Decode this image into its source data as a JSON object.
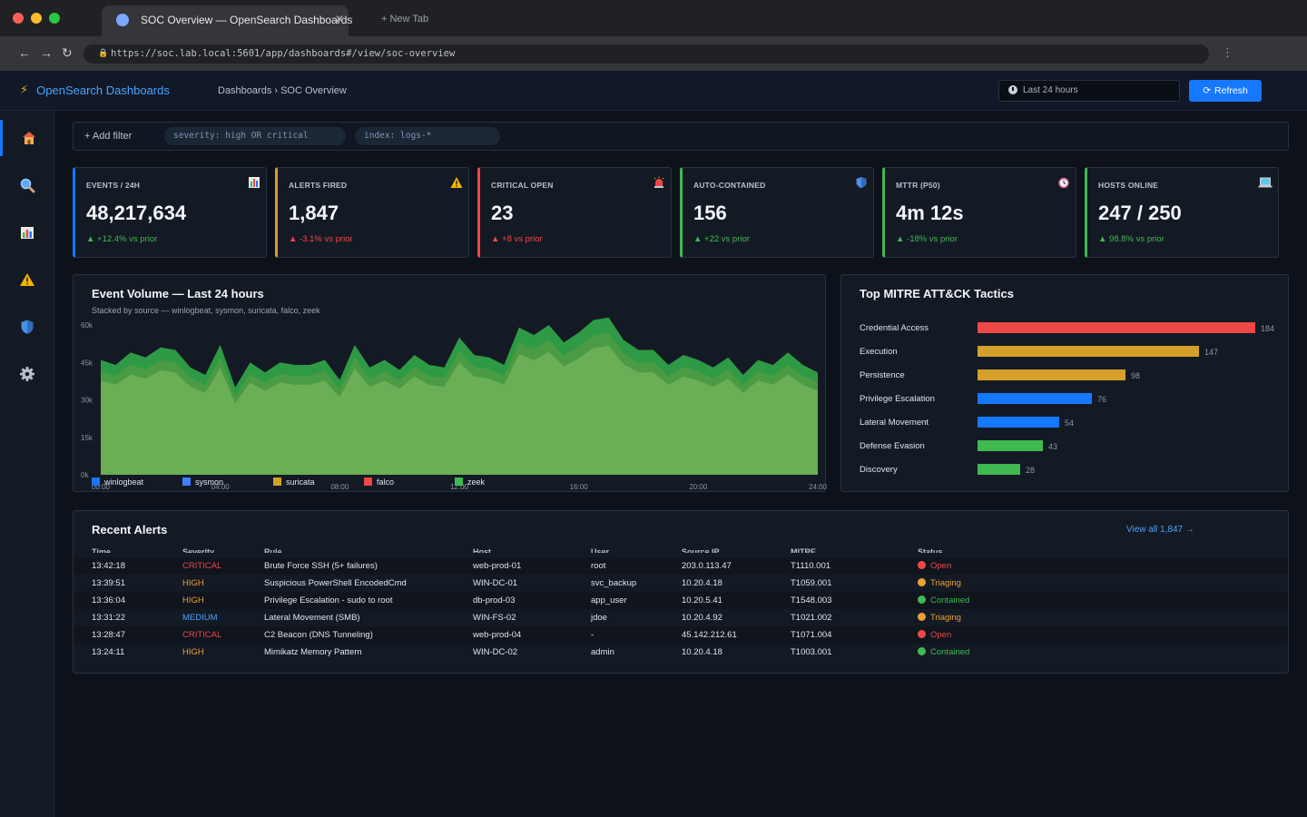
{
  "browser": {
    "tab_title": "SOC Overview — OpenSearch Dashboards",
    "new_tab_label": "+ New Tab",
    "url": "https://soc.lab.local:5601/app/dashboards#/view/soc-overview"
  },
  "header": {
    "brand": "OpenSearch Dashboards",
    "breadcrumb": "Dashboards › SOC Overview",
    "time_range": "Last 24 hours",
    "refresh_label": "Refresh"
  },
  "sidebar": {
    "items": [
      {
        "icon": "home-icon",
        "active": true
      },
      {
        "icon": "search-icon",
        "active": false
      },
      {
        "icon": "dashboard-icon",
        "active": false
      },
      {
        "icon": "alert-icon",
        "active": false
      },
      {
        "icon": "shield-icon",
        "active": false
      },
      {
        "icon": "gear-icon",
        "active": false
      }
    ]
  },
  "filters": {
    "add_label": "+ Add filter",
    "pills": [
      "severity: high OR critical",
      "index: logs-*"
    ]
  },
  "kpis": [
    {
      "label": "EVENTS / 24H",
      "value": "48,217,634",
      "delta": "▲ +12.4% vs prior",
      "color": "#1677ff",
      "delta_color": "#3fb950",
      "icon": "chart-icon"
    },
    {
      "label": "ALERTS FIRED",
      "value": "1,847",
      "delta": "▲ -3.1% vs prior",
      "color": "#d4a02a",
      "delta_color": "#f04747",
      "icon": "warning-icon"
    },
    {
      "label": "CRITICAL OPEN",
      "value": "23",
      "delta": "▲ +8 vs prior",
      "color": "#f04747",
      "delta_color": "#f04747",
      "icon": "siren-icon"
    },
    {
      "label": "AUTO-CONTAINED",
      "value": "156",
      "delta": "▲ +22 vs prior",
      "color": "#3fb950",
      "delta_color": "#3fb950",
      "icon": "shield-icon"
    },
    {
      "label": "MTTR (P50)",
      "value": "4m 12s",
      "delta": "▲ -18% vs prior",
      "color": "#3fb950",
      "delta_color": "#3fb950",
      "icon": "alarm-clock-icon"
    },
    {
      "label": "HOSTS ONLINE",
      "value": "247 / 250",
      "delta": "▲ 98.8% vs prior",
      "color": "#3fb950",
      "delta_color": "#3fb950",
      "icon": "laptop-icon"
    }
  ],
  "event_volume": {
    "title": "Event Volume — Last 24 hours",
    "subtitle": "Stacked by source — winlogbeat, sysmon, suricata, falco, zeek"
  },
  "chart_data": [
    {
      "type": "area",
      "title": "Event Volume — Last 24 hours",
      "subtitle": "Stacked by source — winlogbeat, sysmon, suricata, falco, zeek",
      "ylim": [
        0,
        60000
      ],
      "yticks": [
        "60k",
        "45k",
        "30k",
        "15k",
        "0k"
      ],
      "xticks": [
        "00:00",
        "04:00",
        "08:00",
        "12:00",
        "16:00",
        "20:00",
        "24:00"
      ],
      "grid": false,
      "legend_position": "bottom",
      "x": [
        "00:00",
        "00:30",
        "01:00",
        "01:30",
        "02:00",
        "02:30",
        "03:00",
        "03:30",
        "04:00",
        "04:30",
        "05:00",
        "05:30",
        "06:00",
        "06:30",
        "07:00",
        "07:30",
        "08:00",
        "08:30",
        "09:00",
        "09:30",
        "10:00",
        "10:30",
        "11:00",
        "11:30",
        "12:00",
        "12:30",
        "13:00",
        "13:30",
        "14:00",
        "14:30",
        "15:00",
        "15:30",
        "16:00",
        "16:30",
        "17:00",
        "17:30",
        "18:00",
        "18:30",
        "19:00",
        "19:30",
        "20:00",
        "20:30",
        "21:00",
        "21:30",
        "22:00",
        "22:30",
        "23:00",
        "23:30",
        "24:00"
      ],
      "series": [
        {
          "name": "winlogbeat",
          "color": "#1677ff",
          "values": [
            46000,
            44000,
            49000,
            47000,
            51000,
            50000,
            43000,
            40000,
            52000,
            35000,
            45000,
            41000,
            45000,
            44000,
            44000,
            46000,
            38000,
            52000,
            43000,
            46000,
            42000,
            48000,
            44000,
            43000,
            55000,
            48000,
            47000,
            44000,
            59000,
            56000,
            60000,
            53000,
            57000,
            62000,
            63000,
            54000,
            50000,
            50000,
            44000,
            48000,
            46000,
            43000,
            47000,
            40000,
            46000,
            44000,
            49000,
            44000,
            41000
          ]
        },
        {
          "name": "sysmon",
          "color": "#3d7eff",
          "values": [
            0,
            0,
            0,
            0,
            0,
            0,
            0,
            0,
            0,
            0,
            0,
            0,
            0,
            0,
            0,
            0,
            0,
            0,
            0,
            0,
            0,
            0,
            0,
            0,
            0,
            0,
            0,
            0,
            0,
            0,
            0,
            0,
            0,
            0,
            0,
            0,
            0,
            0,
            0,
            0,
            0,
            0,
            0,
            0,
            0,
            0,
            0,
            0,
            0
          ]
        },
        {
          "name": "suricata",
          "color": "#d4a02a",
          "values": [
            0,
            0,
            0,
            0,
            0,
            0,
            0,
            0,
            0,
            0,
            0,
            0,
            0,
            0,
            0,
            0,
            0,
            0,
            0,
            0,
            0,
            0,
            0,
            0,
            0,
            0,
            0,
            0,
            0,
            0,
            0,
            0,
            0,
            0,
            0,
            0,
            0,
            0,
            0,
            0,
            0,
            0,
            0,
            0,
            0,
            0,
            0,
            0,
            0
          ]
        },
        {
          "name": "falco",
          "color": "#f04747",
          "values": [
            0,
            0,
            0,
            0,
            0,
            0,
            0,
            0,
            0,
            0,
            0,
            0,
            0,
            0,
            0,
            0,
            0,
            0,
            0,
            0,
            0,
            0,
            0,
            0,
            0,
            0,
            0,
            0,
            0,
            0,
            0,
            0,
            0,
            0,
            0,
            0,
            0,
            0,
            0,
            0,
            0,
            0,
            0,
            0,
            0,
            0,
            0,
            0,
            0
          ]
        },
        {
          "name": "zeek",
          "color": "#3fb950",
          "values": [
            0,
            0,
            0,
            0,
            0,
            0,
            0,
            0,
            0,
            0,
            0,
            0,
            0,
            0,
            0,
            0,
            0,
            0,
            0,
            0,
            0,
            0,
            0,
            0,
            0,
            0,
            0,
            0,
            0,
            0,
            0,
            0,
            0,
            0,
            0,
            0,
            0,
            0,
            0,
            0,
            0,
            0,
            0,
            0,
            0,
            0,
            0,
            0,
            0
          ]
        }
      ]
    },
    {
      "type": "bar",
      "title": "Top MITRE ATT&CK Tactics",
      "orientation": "horizontal",
      "categories": [
        "Credential Access",
        "Execution",
        "Persistence",
        "Privilege Escalation",
        "Lateral Movement",
        "Defense Evasion",
        "Discovery"
      ],
      "values": [
        184,
        147,
        98,
        76,
        54,
        43,
        28
      ],
      "colors": [
        "#f04747",
        "#d4a02a",
        "#d4a02a",
        "#1677ff",
        "#1677ff",
        "#3fb950",
        "#3fb950"
      ],
      "xlim": [
        0,
        184
      ]
    }
  ],
  "alerts": {
    "title": "Recent Alerts",
    "view_all": "View all 1,847 →",
    "columns": [
      "Time",
      "Severity",
      "Rule",
      "Host",
      "User",
      "Source IP",
      "MITRE",
      "Status"
    ],
    "rows": [
      {
        "time": "13:42:18",
        "severity": "CRITICAL",
        "rule": "Brute Force SSH (5+ failures)",
        "host": "web-prod-01",
        "user": "root",
        "ip": "203.0.113.47",
        "mitre": "T1110.001",
        "status": "Open"
      },
      {
        "time": "13:39:51",
        "severity": "HIGH",
        "rule": "Suspicious PowerShell EncodedCmd",
        "host": "WIN-DC-01",
        "user": "svc_backup",
        "ip": "10.20.4.18",
        "mitre": "T1059.001",
        "status": "Triaging"
      },
      {
        "time": "13:36:04",
        "severity": "HIGH",
        "rule": "Privilege Escalation - sudo to root",
        "host": "db-prod-03",
        "user": "app_user",
        "ip": "10.20.5.41",
        "mitre": "T1548.003",
        "status": "Contained"
      },
      {
        "time": "13:31:22",
        "severity": "MEDIUM",
        "rule": "Lateral Movement (SMB)",
        "host": "WIN-FS-02",
        "user": "jdoe",
        "ip": "10.20.4.92",
        "mitre": "T1021.002",
        "status": "Triaging"
      },
      {
        "time": "13:28:47",
        "severity": "CRITICAL",
        "rule": "C2 Beacon (DNS Tunneling)",
        "host": "web-prod-04",
        "user": "-",
        "ip": "45.142.212.61",
        "mitre": "T1071.004",
        "status": "Open"
      },
      {
        "time": "13:24:11",
        "severity": "HIGH",
        "rule": "Mimikatz Memory Pattern",
        "host": "WIN-DC-02",
        "user": "admin",
        "ip": "10.20.4.18",
        "mitre": "T1003.001",
        "status": "Contained"
      }
    ],
    "severity_colors": {
      "CRITICAL": "#f04747",
      "HIGH": "#e8a23a",
      "MEDIUM": "#4aa3ff"
    },
    "status_colors": {
      "Open": "#f04747",
      "Triaging": "#e8a23a",
      "Contained": "#3fb950"
    }
  }
}
